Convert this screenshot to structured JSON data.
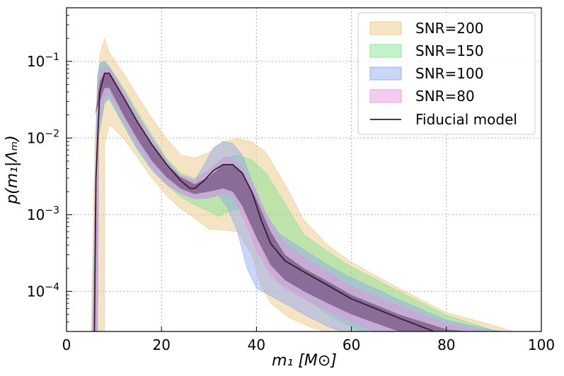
{
  "chart_data": {
    "type": "area",
    "xlabel": "m₁ [M⊙]",
    "ylabel": "p(m₁|Λₘ)",
    "xlim": [
      0,
      100
    ],
    "ylim": [
      3e-05,
      0.5
    ],
    "yscale": "log",
    "xticks": [
      {
        "value": 0,
        "label": "0"
      },
      {
        "value": 20,
        "label": "20"
      },
      {
        "value": 40,
        "label": "40"
      },
      {
        "value": 60,
        "label": "60"
      },
      {
        "value": 80,
        "label": "80"
      },
      {
        "value": 100,
        "label": "100"
      }
    ],
    "yticks": [
      {
        "value": 0.0001,
        "base": "10",
        "exp": "−4"
      },
      {
        "value": 0.001,
        "base": "10",
        "exp": "−3"
      },
      {
        "value": 0.01,
        "base": "10",
        "exp": "−2"
      },
      {
        "value": 0.1,
        "base": "10",
        "exp": "−1"
      }
    ],
    "grid": true,
    "legend_position": "top-right",
    "bands": [
      {
        "name": "SNR=200",
        "color": "#e8c47a",
        "opacity": 0.45,
        "upper": [
          [
            5,
            1e-05
          ],
          [
            6,
            0.01
          ],
          [
            7,
            0.12
          ],
          [
            8,
            0.2
          ],
          [
            9,
            0.13
          ],
          [
            12,
            0.07
          ],
          [
            15,
            0.035
          ],
          [
            18,
            0.018
          ],
          [
            21,
            0.01
          ],
          [
            24,
            0.006
          ],
          [
            27,
            0.0055
          ],
          [
            30,
            0.0065
          ],
          [
            33,
            0.009
          ],
          [
            36,
            0.0098
          ],
          [
            39,
            0.009
          ],
          [
            42,
            0.0065
          ],
          [
            46,
            0.0025
          ],
          [
            50,
            0.00085
          ],
          [
            55,
            0.0004
          ],
          [
            60,
            0.00024
          ],
          [
            70,
            0.00011
          ],
          [
            80,
            5.3e-05
          ],
          [
            90,
            3.6e-05
          ],
          [
            94,
            3e-05
          ]
        ],
        "lower": [
          [
            8,
            1e-05
          ],
          [
            8,
            0.008
          ],
          [
            9,
            0.015
          ],
          [
            12,
            0.01
          ],
          [
            15,
            0.0055
          ],
          [
            18,
            0.003
          ],
          [
            21,
            0.0018
          ],
          [
            24,
            0.0012
          ],
          [
            27,
            0.0009
          ],
          [
            30,
            0.00065
          ],
          [
            33,
            0.00063
          ],
          [
            36,
            0.0006
          ],
          [
            39,
            0.0003
          ],
          [
            41,
            0.00012
          ],
          [
            43,
            7e-05
          ],
          [
            47,
            4.5e-05
          ],
          [
            52,
            3.3e-05
          ],
          [
            55,
            3e-05
          ]
        ]
      },
      {
        "name": "SNR=150",
        "color": "#7be28f",
        "opacity": 0.45,
        "upper": [
          [
            5.3,
            1e-05
          ],
          [
            6.5,
            0.05
          ],
          [
            7,
            0.09
          ],
          [
            8,
            0.1
          ],
          [
            9,
            0.085
          ],
          [
            12,
            0.045
          ],
          [
            15,
            0.022
          ],
          [
            18,
            0.011
          ],
          [
            21,
            0.0055
          ],
          [
            24,
            0.0035
          ],
          [
            27,
            0.003
          ],
          [
            30,
            0.0038
          ],
          [
            33,
            0.0055
          ],
          [
            36,
            0.006
          ],
          [
            39,
            0.0052
          ],
          [
            42,
            0.0035
          ],
          [
            46,
            0.0014
          ],
          [
            50,
            0.00055
          ],
          [
            55,
            0.00033
          ],
          [
            60,
            0.00021
          ],
          [
            70,
            0.0001
          ],
          [
            80,
            4.9e-05
          ],
          [
            90,
            3.1e-05
          ],
          [
            93,
            3e-05
          ]
        ],
        "lower": [
          [
            6.5,
            1e-05
          ],
          [
            6.8,
            0.01
          ],
          [
            8,
            0.028
          ],
          [
            9,
            0.035
          ],
          [
            12,
            0.015
          ],
          [
            15,
            0.007
          ],
          [
            18,
            0.004
          ],
          [
            21,
            0.0025
          ],
          [
            24,
            0.0017
          ],
          [
            27,
            0.00135
          ],
          [
            30,
            0.0011
          ],
          [
            32,
            0.00095
          ],
          [
            34,
            0.0011
          ],
          [
            37,
            0.0012
          ],
          [
            40,
            0.0006
          ],
          [
            42,
            0.00024
          ],
          [
            45,
            0.00013
          ],
          [
            50,
            8.5e-05
          ],
          [
            55,
            5e-05
          ],
          [
            60,
            3.4e-05
          ],
          [
            62,
            3e-05
          ]
        ]
      },
      {
        "name": "SNR=100",
        "color": "#8aa4ef",
        "opacity": 0.45,
        "upper": [
          [
            5.3,
            1e-05
          ],
          [
            6.5,
            0.06
          ],
          [
            7,
            0.095
          ],
          [
            8,
            0.1
          ],
          [
            9,
            0.085
          ],
          [
            12,
            0.042
          ],
          [
            15,
            0.02
          ],
          [
            18,
            0.01
          ],
          [
            21,
            0.0052
          ],
          [
            24,
            0.0032
          ],
          [
            27,
            0.0028
          ],
          [
            29,
            0.0045
          ],
          [
            31,
            0.0075
          ],
          [
            33,
            0.009
          ],
          [
            35,
            0.0085
          ],
          [
            37,
            0.006
          ],
          [
            39,
            0.0028
          ],
          [
            42,
            0.001
          ],
          [
            45,
            0.00055
          ],
          [
            50,
            0.00035
          ],
          [
            55,
            0.00022
          ],
          [
            60,
            0.00015
          ],
          [
            70,
            7.8e-05
          ],
          [
            80,
            4.2e-05
          ],
          [
            90,
            3.1e-05
          ],
          [
            92,
            3e-05
          ]
        ],
        "lower": [
          [
            6.5,
            1e-05
          ],
          [
            6.8,
            0.012
          ],
          [
            8,
            0.03
          ],
          [
            9,
            0.032
          ],
          [
            12,
            0.015
          ],
          [
            15,
            0.007
          ],
          [
            18,
            0.0038
          ],
          [
            21,
            0.0025
          ],
          [
            24,
            0.0019
          ],
          [
            27,
            0.0016
          ],
          [
            30,
            0.00165
          ],
          [
            32,
            0.0018
          ],
          [
            34,
            0.0012
          ],
          [
            36,
            0.0006
          ],
          [
            38,
            0.0002
          ],
          [
            40,
            0.00011
          ],
          [
            45,
            7.5e-05
          ],
          [
            50,
            5e-05
          ],
          [
            55,
            3.5e-05
          ],
          [
            58,
            3e-05
          ]
        ]
      },
      {
        "name": "SNR=80",
        "color": "#e88ee0",
        "opacity": 0.45,
        "upper": [
          [
            5.5,
            1e-05
          ],
          [
            6.5,
            0.04
          ],
          [
            7,
            0.075
          ],
          [
            8,
            0.085
          ],
          [
            9,
            0.08
          ],
          [
            12,
            0.04
          ],
          [
            15,
            0.019
          ],
          [
            18,
            0.0095
          ],
          [
            21,
            0.005
          ],
          [
            24,
            0.0033
          ],
          [
            27,
            0.0028
          ],
          [
            30,
            0.0038
          ],
          [
            33,
            0.0055
          ],
          [
            35,
            0.0055
          ],
          [
            37,
            0.0042
          ],
          [
            40,
            0.002
          ],
          [
            43,
            0.00075
          ],
          [
            46,
            0.00042
          ],
          [
            50,
            0.00028
          ],
          [
            55,
            0.00018
          ],
          [
            60,
            0.000115
          ],
          [
            70,
            6.5e-05
          ],
          [
            80,
            3.8e-05
          ],
          [
            88,
            3e-05
          ]
        ],
        "lower": [
          [
            6.5,
            1e-05
          ],
          [
            6.8,
            0.015
          ],
          [
            8,
            0.035
          ],
          [
            9,
            0.038
          ],
          [
            12,
            0.018
          ],
          [
            15,
            0.008
          ],
          [
            18,
            0.0042
          ],
          [
            21,
            0.0026
          ],
          [
            24,
            0.0019
          ],
          [
            27,
            0.0016
          ],
          [
            30,
            0.0017
          ],
          [
            33,
            0.0019
          ],
          [
            35,
            0.0017
          ],
          [
            37,
            0.001
          ],
          [
            40,
            0.00035
          ],
          [
            43,
            0.00016
          ],
          [
            46,
            0.00011
          ],
          [
            50,
            8e-05
          ],
          [
            55,
            5.5e-05
          ],
          [
            60,
            4e-05
          ],
          [
            65,
            3e-05
          ]
        ]
      }
    ],
    "band_overlap": {
      "color": "#6b4a78",
      "opacity": 0.65,
      "upper": [
        [
          6,
          0.02
        ],
        [
          7,
          0.055
        ],
        [
          8,
          0.07
        ],
        [
          9,
          0.068
        ],
        [
          12,
          0.035
        ],
        [
          15,
          0.016
        ],
        [
          18,
          0.0082
        ],
        [
          21,
          0.0046
        ],
        [
          24,
          0.0031
        ],
        [
          27,
          0.0025
        ],
        [
          30,
          0.0031
        ],
        [
          33,
          0.0045
        ],
        [
          35,
          0.0046
        ],
        [
          37,
          0.0036
        ],
        [
          40,
          0.0016
        ],
        [
          43,
          0.0006
        ],
        [
          46,
          0.0003
        ],
        [
          50,
          0.0002
        ],
        [
          55,
          0.000135
        ],
        [
          60,
          9e-05
        ],
        [
          70,
          5e-05
        ],
        [
          80,
          3.2e-05
        ],
        [
          85,
          3e-05
        ]
      ],
      "lower": [
        [
          8,
          0.045
        ],
        [
          9,
          0.045
        ],
        [
          12,
          0.02
        ],
        [
          15,
          0.0095
        ],
        [
          18,
          0.005
        ],
        [
          21,
          0.0031
        ],
        [
          24,
          0.0022
        ],
        [
          27,
          0.00185
        ],
        [
          30,
          0.002
        ],
        [
          33,
          0.0022
        ],
        [
          35,
          0.002
        ],
        [
          37,
          0.0013
        ],
        [
          40,
          0.0005
        ],
        [
          43,
          0.00022
        ],
        [
          46,
          0.00014
        ],
        [
          50,
          0.0001
        ],
        [
          55,
          7e-05
        ],
        [
          60,
          5e-05
        ],
        [
          70,
          3e-05
        ]
      ]
    },
    "fiducial": {
      "name": "Fiducial model",
      "color": "#3a1a2e",
      "points": [
        [
          5.8,
          1e-05
        ],
        [
          6.2,
          0.003
        ],
        [
          7,
          0.04
        ],
        [
          8,
          0.07
        ],
        [
          9,
          0.07
        ],
        [
          10,
          0.055
        ],
        [
          12,
          0.034
        ],
        [
          15,
          0.016
        ],
        [
          18,
          0.0082
        ],
        [
          21,
          0.0046
        ],
        [
          24,
          0.0028
        ],
        [
          26,
          0.0022
        ],
        [
          27,
          0.0022
        ],
        [
          29,
          0.0028
        ],
        [
          31,
          0.0038
        ],
        [
          33,
          0.0045
        ],
        [
          35,
          0.0045
        ],
        [
          37,
          0.0035
        ],
        [
          39,
          0.002
        ],
        [
          41,
          0.00085
        ],
        [
          43,
          0.00042
        ],
        [
          46,
          0.00025
        ],
        [
          50,
          0.00018
        ],
        [
          55,
          0.00012
        ],
        [
          60,
          8e-05
        ],
        [
          70,
          4.5e-05
        ],
        [
          80,
          2.6e-05
        ]
      ]
    }
  }
}
